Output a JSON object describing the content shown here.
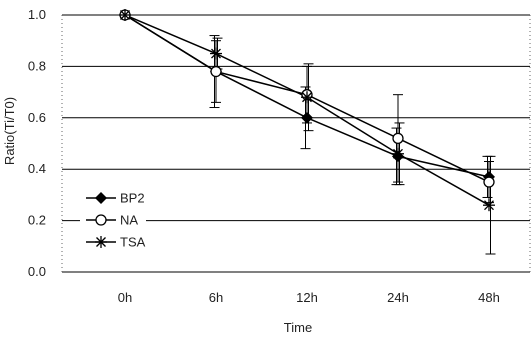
{
  "chart_data": {
    "type": "line",
    "xlabel": "Time",
    "ylabel": "Ratio(Ti/T0)",
    "categories": [
      "0h",
      "6h",
      "12h",
      "24h",
      "48h"
    ],
    "ylim": [
      0.0,
      1.0
    ],
    "yticks": [
      "0.0",
      "0.2",
      "0.4",
      "0.6",
      "0.8",
      "1.0"
    ],
    "ytick_values": [
      0.0,
      0.2,
      0.4,
      0.6,
      0.8,
      1.0
    ],
    "grid": "horizontal",
    "legend_position": "bottom-left",
    "series": [
      {
        "name": "BP2",
        "marker": "filled-diamond",
        "values": [
          1.0,
          0.78,
          0.6,
          0.45,
          0.37
        ],
        "errors": [
          0.0,
          0.14,
          0.12,
          0.11,
          0.08
        ]
      },
      {
        "name": "NA",
        "marker": "open-circle",
        "values": [
          1.0,
          0.78,
          0.69,
          0.52,
          0.35
        ],
        "errors": [
          0.0,
          0.12,
          0.11,
          0.17,
          0.08
        ]
      },
      {
        "name": "TSA",
        "marker": "asterisk",
        "values": [
          1.0,
          0.85,
          0.68,
          0.46,
          0.26
        ],
        "errors": [
          0.0,
          0.06,
          0.13,
          0.12,
          0.19
        ]
      }
    ]
  }
}
